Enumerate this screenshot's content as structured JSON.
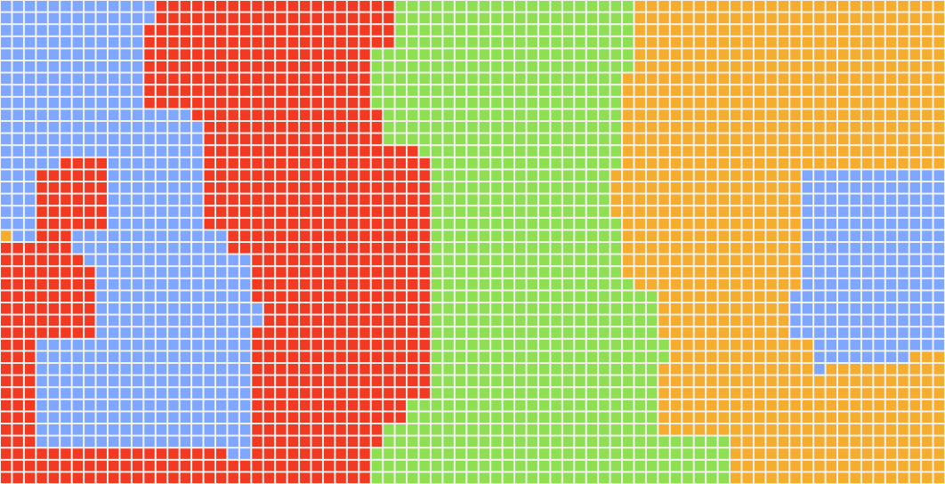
{
  "game": {
    "title": "",
    "grid_columns": 79,
    "grid_rows": 40,
    "palette": {
      "blue": "#7fa7ff",
      "red": "#f23a22",
      "green": "#8ee052",
      "orange": "#f6ad2e",
      "gap": "#f2f2f2"
    },
    "regions": [
      {
        "color": "blue",
        "cells": [
          [
            0,
            0
          ],
          [
            13,
            0
          ],
          [
            13,
            2
          ],
          [
            12,
            2
          ],
          [
            12,
            9
          ],
          [
            16,
            9
          ],
          [
            16,
            10
          ],
          [
            17,
            10
          ],
          [
            17,
            19
          ],
          [
            19,
            19
          ],
          [
            19,
            21
          ],
          [
            21,
            21
          ],
          [
            21,
            25
          ],
          [
            22,
            25
          ],
          [
            22,
            27
          ],
          [
            21,
            27
          ],
          [
            21,
            38
          ],
          [
            19,
            38
          ],
          [
            19,
            37
          ],
          [
            3,
            37
          ],
          [
            3,
            28
          ],
          [
            8,
            28
          ],
          [
            8,
            22
          ],
          [
            7,
            22
          ],
          [
            7,
            21
          ],
          [
            6,
            21
          ],
          [
            6,
            19
          ],
          [
            9,
            19
          ],
          [
            9,
            13
          ],
          [
            5,
            13
          ],
          [
            5,
            14
          ],
          [
            3,
            14
          ],
          [
            3,
            20
          ],
          [
            1,
            20
          ],
          [
            1,
            19
          ],
          [
            0,
            19
          ]
        ]
      },
      {
        "color": "blue",
        "cells": [
          [
            67,
            14
          ],
          [
            79,
            14
          ],
          [
            79,
            29
          ],
          [
            76,
            29
          ],
          [
            76,
            30
          ],
          [
            69,
            30
          ],
          [
            69,
            31
          ],
          [
            68,
            31
          ],
          [
            68,
            28
          ],
          [
            66,
            28
          ],
          [
            66,
            24
          ],
          [
            67,
            24
          ]
        ]
      },
      {
        "color": "red",
        "cells": [
          [
            13,
            0
          ],
          [
            33,
            0
          ],
          [
            33,
            4
          ],
          [
            31,
            4
          ],
          [
            31,
            9
          ],
          [
            32,
            9
          ],
          [
            32,
            12
          ],
          [
            35,
            12
          ],
          [
            35,
            13
          ],
          [
            36,
            13
          ],
          [
            36,
            33
          ],
          [
            34,
            33
          ],
          [
            34,
            35
          ],
          [
            32,
            35
          ],
          [
            32,
            37
          ],
          [
            31,
            37
          ],
          [
            31,
            40
          ],
          [
            0,
            40
          ],
          [
            0,
            20
          ],
          [
            3,
            20
          ],
          [
            3,
            14
          ],
          [
            5,
            14
          ],
          [
            5,
            13
          ],
          [
            9,
            13
          ],
          [
            9,
            19
          ],
          [
            6,
            19
          ],
          [
            6,
            21
          ],
          [
            7,
            21
          ],
          [
            7,
            22
          ],
          [
            8,
            22
          ],
          [
            8,
            28
          ],
          [
            3,
            28
          ],
          [
            3,
            37
          ],
          [
            19,
            37
          ],
          [
            19,
            38
          ],
          [
            21,
            38
          ],
          [
            21,
            27
          ],
          [
            22,
            27
          ],
          [
            22,
            25
          ],
          [
            21,
            25
          ],
          [
            21,
            21
          ],
          [
            19,
            21
          ],
          [
            19,
            19
          ],
          [
            17,
            19
          ],
          [
            17,
            10
          ],
          [
            16,
            10
          ],
          [
            16,
            9
          ],
          [
            12,
            9
          ],
          [
            12,
            2
          ],
          [
            13,
            2
          ]
        ]
      },
      {
        "color": "green",
        "cells": [
          [
            33,
            0
          ],
          [
            53,
            0
          ],
          [
            53,
            6
          ],
          [
            52,
            6
          ],
          [
            52,
            14
          ],
          [
            51,
            14
          ],
          [
            51,
            18
          ],
          [
            52,
            18
          ],
          [
            52,
            23
          ],
          [
            53,
            23
          ],
          [
            53,
            24
          ],
          [
            55,
            24
          ],
          [
            55,
            28
          ],
          [
            56,
            28
          ],
          [
            56,
            30
          ],
          [
            55,
            30
          ],
          [
            55,
            36
          ],
          [
            61,
            36
          ],
          [
            61,
            40
          ],
          [
            31,
            40
          ],
          [
            31,
            37
          ],
          [
            32,
            37
          ],
          [
            32,
            35
          ],
          [
            34,
            35
          ],
          [
            34,
            33
          ],
          [
            36,
            33
          ],
          [
            36,
            13
          ],
          [
            35,
            13
          ],
          [
            35,
            12
          ],
          [
            32,
            12
          ],
          [
            32,
            9
          ],
          [
            31,
            9
          ],
          [
            31,
            4
          ],
          [
            33,
            4
          ]
        ]
      },
      {
        "color": "orange",
        "cells": [
          [
            53,
            0
          ],
          [
            79,
            0
          ],
          [
            79,
            14
          ],
          [
            67,
            14
          ],
          [
            67,
            24
          ],
          [
            66,
            24
          ],
          [
            66,
            28
          ],
          [
            68,
            28
          ],
          [
            68,
            31
          ],
          [
            69,
            31
          ],
          [
            69,
            30
          ],
          [
            76,
            30
          ],
          [
            76,
            29
          ],
          [
            79,
            29
          ],
          [
            79,
            40
          ],
          [
            61,
            40
          ],
          [
            61,
            36
          ],
          [
            55,
            36
          ],
          [
            55,
            30
          ],
          [
            56,
            30
          ],
          [
            56,
            28
          ],
          [
            55,
            28
          ],
          [
            55,
            24
          ],
          [
            53,
            24
          ],
          [
            53,
            23
          ],
          [
            52,
            23
          ],
          [
            52,
            18
          ],
          [
            51,
            18
          ],
          [
            51,
            14
          ],
          [
            52,
            14
          ],
          [
            52,
            6
          ],
          [
            53,
            6
          ]
        ]
      }
    ]
  }
}
